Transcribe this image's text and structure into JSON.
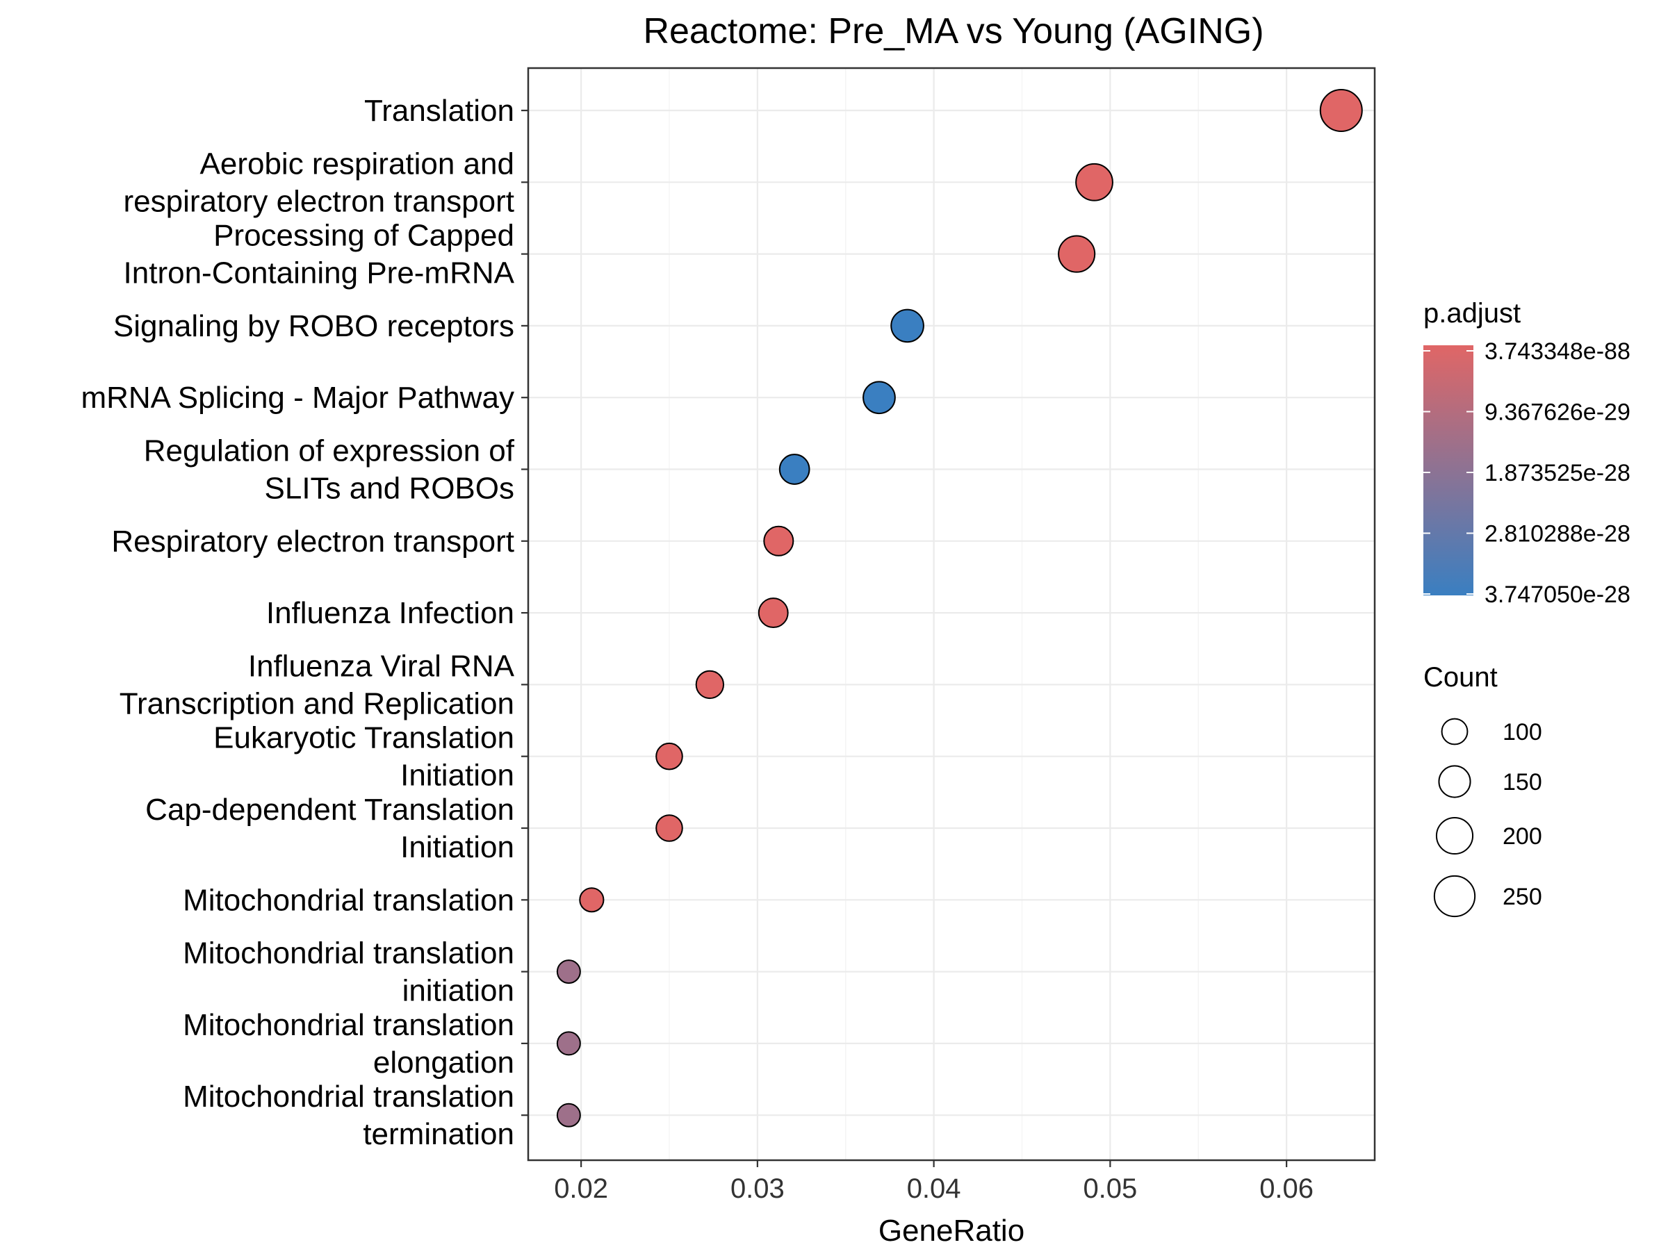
{
  "chart_data": {
    "type": "scatter",
    "title": "Reactome: Pre_MA vs Young (AGING)",
    "xlabel": "GeneRatio",
    "ylabel": "",
    "xlim": [
      0.017,
      0.065
    ],
    "xticks": [
      0.02,
      0.03,
      0.04,
      0.05,
      0.06
    ],
    "xtick_labels": [
      "0.02",
      "0.03",
      "0.04",
      "0.05",
      "0.06"
    ],
    "grid": true,
    "categories": [
      [
        "Translation"
      ],
      [
        "Aerobic respiration and",
        "respiratory electron transport"
      ],
      [
        "Processing of Capped",
        "Intron-Containing Pre-mRNA"
      ],
      [
        "Signaling by ROBO receptors"
      ],
      [
        "mRNA Splicing - Major Pathway"
      ],
      [
        "Regulation of expression of",
        "SLITs and ROBOs"
      ],
      [
        "Respiratory electron transport"
      ],
      [
        "Influenza Infection"
      ],
      [
        "Influenza Viral RNA",
        "Transcription and Replication"
      ],
      [
        "Eukaryotic Translation",
        "Initiation"
      ],
      [
        "Cap-dependent Translation",
        "Initiation"
      ],
      [
        "Mitochondrial translation"
      ],
      [
        "Mitochondrial translation",
        "initiation"
      ],
      [
        "Mitochondrial translation",
        "elongation"
      ],
      [
        "Mitochondrial translation",
        "termination"
      ]
    ],
    "points": [
      {
        "gene_ratio": 0.0631,
        "count": 265,
        "color_frac": 0.0
      },
      {
        "gene_ratio": 0.0491,
        "count": 205,
        "color_frac": 0.0
      },
      {
        "gene_ratio": 0.0481,
        "count": 200,
        "color_frac": 0.0
      },
      {
        "gene_ratio": 0.0385,
        "count": 160,
        "color_frac": 1.0
      },
      {
        "gene_ratio": 0.0369,
        "count": 154,
        "color_frac": 1.0
      },
      {
        "gene_ratio": 0.0321,
        "count": 134,
        "color_frac": 1.0
      },
      {
        "gene_ratio": 0.0312,
        "count": 130,
        "color_frac": 0.0
      },
      {
        "gene_ratio": 0.0309,
        "count": 129,
        "color_frac": 0.0
      },
      {
        "gene_ratio": 0.0273,
        "count": 114,
        "color_frac": 0.0
      },
      {
        "gene_ratio": 0.025,
        "count": 104,
        "color_frac": 0.0
      },
      {
        "gene_ratio": 0.025,
        "count": 104,
        "color_frac": 0.0
      },
      {
        "gene_ratio": 0.0206,
        "count": 86,
        "color_frac": 0.0
      },
      {
        "gene_ratio": 0.0193,
        "count": 80,
        "color_frac": 0.4
      },
      {
        "gene_ratio": 0.0193,
        "count": 80,
        "color_frac": 0.4
      },
      {
        "gene_ratio": 0.0193,
        "count": 80,
        "color_frac": 0.4
      }
    ],
    "color_legend": {
      "title": "p.adjust",
      "labels": [
        "3.743348e-88",
        "9.367626e-29",
        "1.873525e-28",
        "2.810288e-28",
        "3.747050e-28"
      ],
      "low_color": "#E06666",
      "high_color": "#3A7FC1"
    },
    "size_legend": {
      "title": "Count",
      "values": [
        100,
        150,
        200,
        250
      ]
    },
    "legend_position": "right"
  }
}
